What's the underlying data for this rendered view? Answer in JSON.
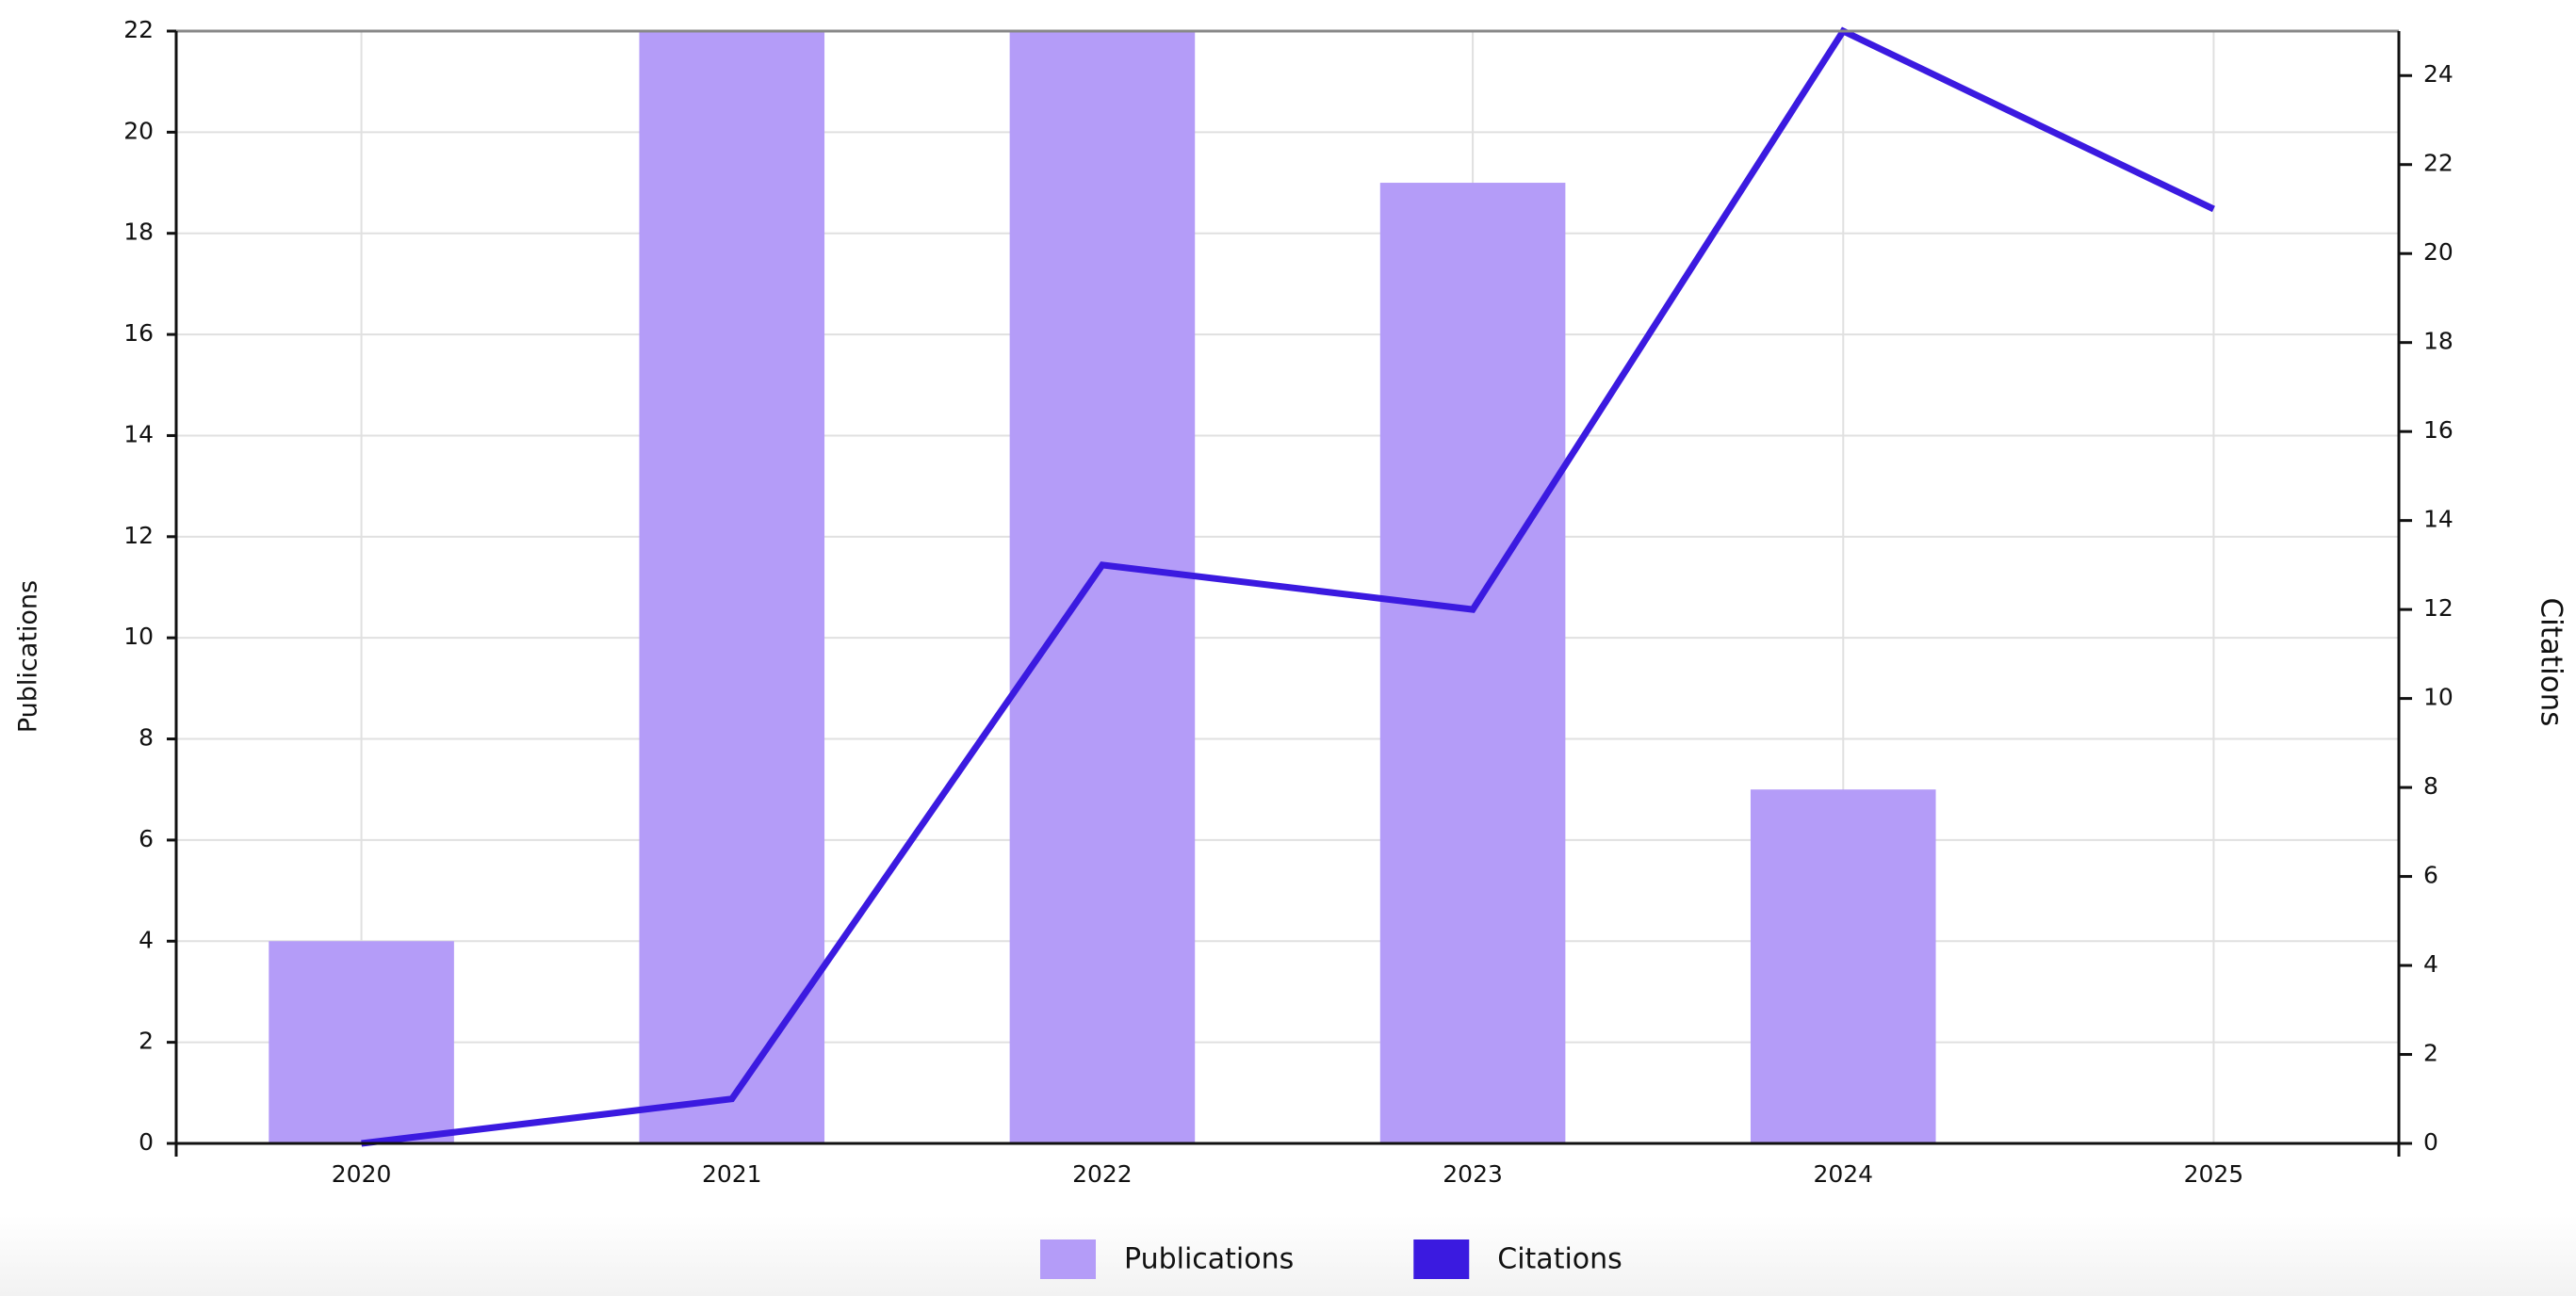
{
  "chart_data": {
    "type": "bar-line",
    "categories": [
      "2020",
      "2021",
      "2022",
      "2023",
      "2024",
      "2025"
    ],
    "series": [
      {
        "name": "Publications",
        "type": "bar",
        "color": "#b49cf8",
        "values": [
          4,
          22,
          22,
          19,
          7,
          0
        ]
      },
      {
        "name": "Citations",
        "type": "line",
        "axis": "y2",
        "color": "#3b1ae0",
        "values": [
          0,
          1,
          13,
          12,
          25,
          21
        ]
      }
    ],
    "ylabel": "Publications",
    "y2label": "Citations",
    "ylim": [
      0,
      22
    ],
    "yticks": [
      0,
      2,
      4,
      6,
      8,
      10,
      12,
      14,
      16,
      18,
      20,
      22
    ],
    "y2lim": [
      0,
      25
    ],
    "y2ticks": [
      0,
      2,
      4,
      6,
      8,
      10,
      12,
      14,
      16,
      18,
      20,
      22,
      24
    ],
    "grid": true,
    "legend": "bottom"
  }
}
